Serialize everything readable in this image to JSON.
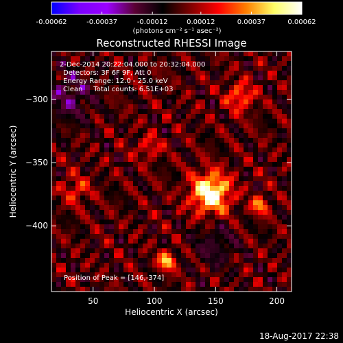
{
  "chart_data": {
    "type": "heatmap",
    "title": "Reconstructed RHESSI Image",
    "colorbar": {
      "ticks": [
        "-0.00062",
        "-0.00037",
        "-0.00012",
        "0.00012",
        "0.00037",
        "0.00062"
      ],
      "min": -0.00062,
      "max": 0.00062,
      "unit_label": "(photons cm⁻² s⁻¹ asec⁻²)",
      "stops": [
        "#0000ff",
        "#7a00ff",
        "#9b00ff",
        "#5a0033",
        "#000000",
        "#7f0000",
        "#ff0000",
        "#ff7f00",
        "#ffff66",
        "#ffffff"
      ]
    },
    "info": {
      "line1": "2-Dec-2014 20:22:04.000 to 20:32:04.000",
      "line2": "Detectors: 3F 6F 9F, Att 0",
      "line3": "Energy Range: 12.0 - 25.0 keV",
      "line4": "Clean     Total counts: 6.51E+03"
    },
    "peak": "Position of Peak = [146,-374]",
    "xlabel": "Heliocentric X (arcsec)",
    "ylabel": "Heliocentric Y (arcsec)",
    "xlim": [
      16,
      212
    ],
    "ylim": [
      -452,
      -262
    ],
    "xticks": [
      50,
      100,
      150,
      200
    ],
    "yticks": [
      -300,
      -350,
      -400
    ],
    "peak_position": [
      146,
      -374
    ],
    "sources": [
      {
        "x": 146,
        "y": -374,
        "amp": 0.00062,
        "sigma": 11
      },
      {
        "x": 110,
        "y": -428,
        "amp": 0.00045,
        "sigma": 5
      },
      {
        "x": 186,
        "y": -384,
        "amp": 0.00035,
        "sigma": 5
      },
      {
        "x": 170,
        "y": -298,
        "amp": 0.0003,
        "sigma": 8
      },
      {
        "x": 36,
        "y": -372,
        "amp": 0.00022,
        "sigma": 8
      },
      {
        "x": 96,
        "y": -338,
        "amp": 0.0002,
        "sigma": 7
      }
    ],
    "negative_regions": [
      {
        "x": 30,
        "y": -298,
        "amp": 0.0002,
        "sigma": 14
      },
      {
        "x": 150,
        "y": -415,
        "amp": 0.00015,
        "sigma": 12
      }
    ]
  },
  "footer": {
    "timestamp": "18-Aug-2017 22:38"
  }
}
